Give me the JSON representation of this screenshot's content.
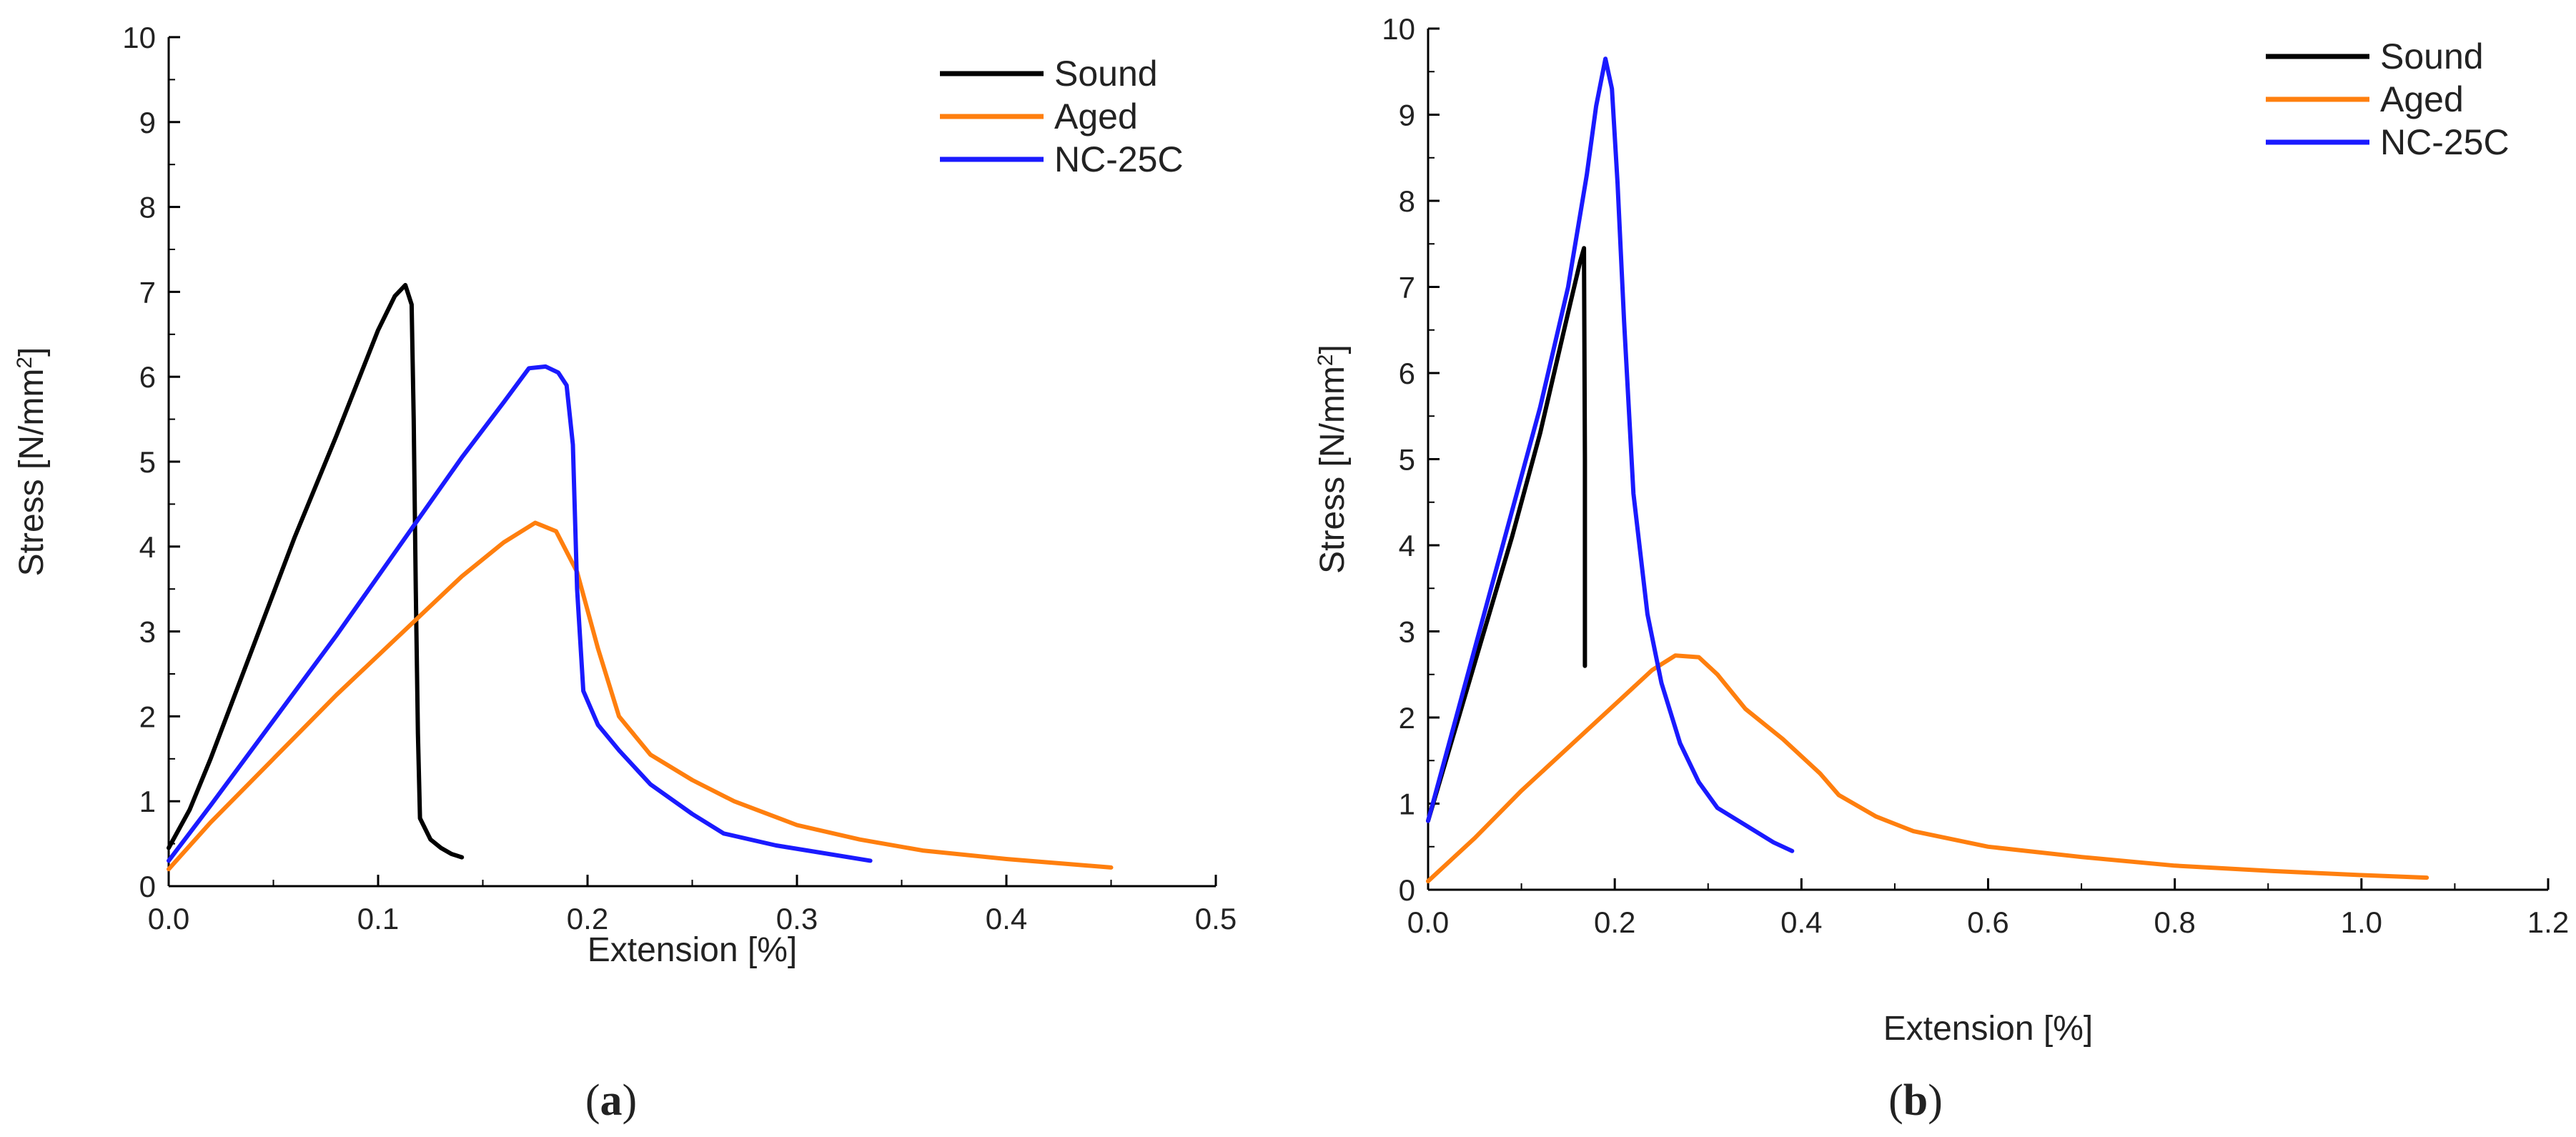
{
  "chart_data": [
    {
      "type": "line",
      "panel_label": "a",
      "xlabel": "Extension [%]",
      "ylabel_main": "Stress [N/mm",
      "ylabel_sup": "2",
      "ylabel_close": "]",
      "xlim": [
        0,
        0.5
      ],
      "ylim": [
        0,
        10
      ],
      "xticks": [
        "0.0",
        "0.1",
        "0.2",
        "0.3",
        "0.4",
        "0.5"
      ],
      "xtick_values": [
        0,
        0.1,
        0.2,
        0.3,
        0.4,
        0.5
      ],
      "yticks": [
        "0",
        "1",
        "2",
        "3",
        "4",
        "5",
        "6",
        "7",
        "8",
        "9",
        "10"
      ],
      "ytick_values": [
        0,
        1,
        2,
        3,
        4,
        5,
        6,
        7,
        8,
        9,
        10
      ],
      "legend_position": "top-right",
      "series": [
        {
          "name": "Sound",
          "color": "#000000",
          "points": [
            [
              0.0,
              0.45
            ],
            [
              0.01,
              0.9
            ],
            [
              0.02,
              1.5
            ],
            [
              0.04,
              2.8
            ],
            [
              0.06,
              4.1
            ],
            [
              0.08,
              5.3
            ],
            [
              0.1,
              6.55
            ],
            [
              0.108,
              6.95
            ],
            [
              0.113,
              7.08
            ],
            [
              0.116,
              6.85
            ],
            [
              0.117,
              5.5
            ],
            [
              0.118,
              3.5
            ],
            [
              0.119,
              1.8
            ],
            [
              0.12,
              0.8
            ],
            [
              0.125,
              0.55
            ],
            [
              0.13,
              0.45
            ],
            [
              0.135,
              0.38
            ],
            [
              0.14,
              0.34
            ]
          ]
        },
        {
          "name": "Aged",
          "color": "#ff7f0e",
          "points": [
            [
              0.0,
              0.2
            ],
            [
              0.02,
              0.75
            ],
            [
              0.05,
              1.5
            ],
            [
              0.08,
              2.25
            ],
            [
              0.11,
              2.95
            ],
            [
              0.14,
              3.65
            ],
            [
              0.16,
              4.05
            ],
            [
              0.175,
              4.28
            ],
            [
              0.185,
              4.18
            ],
            [
              0.195,
              3.7
            ],
            [
              0.205,
              2.8
            ],
            [
              0.215,
              2.0
            ],
            [
              0.23,
              1.55
            ],
            [
              0.25,
              1.25
            ],
            [
              0.27,
              1.0
            ],
            [
              0.3,
              0.72
            ],
            [
              0.33,
              0.55
            ],
            [
              0.36,
              0.42
            ],
            [
              0.4,
              0.32
            ],
            [
              0.43,
              0.26
            ],
            [
              0.45,
              0.22
            ]
          ]
        },
        {
          "name": "NC-25C",
          "color": "#1a1aff",
          "points": [
            [
              0.0,
              0.3
            ],
            [
              0.02,
              0.95
            ],
            [
              0.05,
              1.95
            ],
            [
              0.08,
              2.95
            ],
            [
              0.11,
              4.0
            ],
            [
              0.14,
              5.05
            ],
            [
              0.16,
              5.7
            ],
            [
              0.172,
              6.1
            ],
            [
              0.18,
              6.12
            ],
            [
              0.186,
              6.05
            ],
            [
              0.19,
              5.9
            ],
            [
              0.193,
              5.2
            ],
            [
              0.195,
              3.5
            ],
            [
              0.198,
              2.3
            ],
            [
              0.205,
              1.9
            ],
            [
              0.215,
              1.6
            ],
            [
              0.23,
              1.2
            ],
            [
              0.25,
              0.85
            ],
            [
              0.265,
              0.62
            ],
            [
              0.29,
              0.48
            ],
            [
              0.31,
              0.4
            ],
            [
              0.335,
              0.3
            ]
          ]
        }
      ]
    },
    {
      "type": "line",
      "panel_label": "b",
      "xlabel": "Extension [%]",
      "ylabel_main": "Stress [N/mm",
      "ylabel_sup": "2",
      "ylabel_close": "]",
      "xlim": [
        0,
        1.2
      ],
      "ylim": [
        0,
        10
      ],
      "xticks": [
        "0.0",
        "0.2",
        "0.4",
        "0.6",
        "0.8",
        "1.0",
        "1.2"
      ],
      "xtick_values": [
        0,
        0.2,
        0.4,
        0.6,
        0.8,
        1.0,
        1.2
      ],
      "yticks": [
        "0",
        "1",
        "2",
        "3",
        "4",
        "5",
        "6",
        "7",
        "8",
        "9",
        "10"
      ],
      "ytick_values": [
        0,
        1,
        2,
        3,
        4,
        5,
        6,
        7,
        8,
        9,
        10
      ],
      "legend_position": "top-right",
      "series": [
        {
          "name": "Sound",
          "color": "#000000",
          "points": [
            [
              0.0,
              0.8
            ],
            [
              0.03,
              1.9
            ],
            [
              0.06,
              3.0
            ],
            [
              0.09,
              4.1
            ],
            [
              0.12,
              5.3
            ],
            [
              0.15,
              6.7
            ],
            [
              0.163,
              7.3
            ],
            [
              0.167,
              7.45
            ],
            [
              0.168,
              5.0
            ],
            [
              0.168,
              2.6
            ]
          ]
        },
        {
          "name": "Aged",
          "color": "#ff7f0e",
          "points": [
            [
              0.0,
              0.1
            ],
            [
              0.05,
              0.6
            ],
            [
              0.1,
              1.15
            ],
            [
              0.15,
              1.65
            ],
            [
              0.2,
              2.15
            ],
            [
              0.24,
              2.55
            ],
            [
              0.265,
              2.72
            ],
            [
              0.29,
              2.7
            ],
            [
              0.31,
              2.5
            ],
            [
              0.34,
              2.1
            ],
            [
              0.38,
              1.75
            ],
            [
              0.42,
              1.35
            ],
            [
              0.44,
              1.1
            ],
            [
              0.48,
              0.85
            ],
            [
              0.52,
              0.68
            ],
            [
              0.6,
              0.5
            ],
            [
              0.7,
              0.38
            ],
            [
              0.8,
              0.28
            ],
            [
              0.9,
              0.22
            ],
            [
              1.0,
              0.17
            ],
            [
              1.07,
              0.14
            ]
          ]
        },
        {
          "name": "NC-25C",
          "color": "#1a1aff",
          "points": [
            [
              0.0,
              0.8
            ],
            [
              0.03,
              2.0
            ],
            [
              0.06,
              3.2
            ],
            [
              0.09,
              4.4
            ],
            [
              0.12,
              5.6
            ],
            [
              0.15,
              7.0
            ],
            [
              0.17,
              8.3
            ],
            [
              0.18,
              9.1
            ],
            [
              0.19,
              9.65
            ],
            [
              0.197,
              9.3
            ],
            [
              0.203,
              8.2
            ],
            [
              0.21,
              6.6
            ],
            [
              0.22,
              4.6
            ],
            [
              0.235,
              3.2
            ],
            [
              0.25,
              2.4
            ],
            [
              0.27,
              1.7
            ],
            [
              0.29,
              1.25
            ],
            [
              0.31,
              0.95
            ],
            [
              0.34,
              0.75
            ],
            [
              0.37,
              0.55
            ],
            [
              0.39,
              0.45
            ]
          ]
        }
      ]
    }
  ]
}
